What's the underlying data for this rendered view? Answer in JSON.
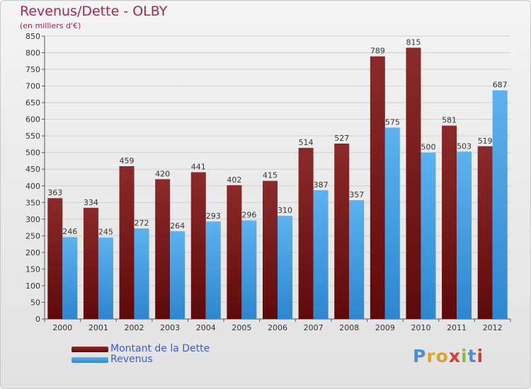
{
  "header": {
    "title": "Revenus/Dette - OLBY",
    "subtitle": "(en milliers d'€)"
  },
  "legend": {
    "dette_label": "Montant de la Dette",
    "revenus_label": "Revenus"
  },
  "logo": {
    "text": "Proxiti",
    "letters": [
      "P",
      "r",
      "o",
      "x",
      "i",
      "t",
      "i"
    ],
    "letter_colors": [
      "#4a8fd6",
      "#e3a22a",
      "#e3a22a",
      "#d93c2b",
      "#8abf2f",
      "#4a8fd6",
      "#d93c2b"
    ]
  },
  "colors": {
    "dette": "#7a1818",
    "revenus": "#4aa3e6"
  },
  "chart_data": {
    "type": "bar",
    "categories": [
      "2000",
      "2001",
      "2002",
      "2003",
      "2004",
      "2005",
      "2006",
      "2007",
      "2008",
      "2009",
      "2010",
      "2011",
      "2012"
    ],
    "series": [
      {
        "name": "Montant de la Dette",
        "values": [
          363,
          334,
          459,
          420,
          441,
          402,
          415,
          514,
          527,
          789,
          815,
          581,
          519
        ]
      },
      {
        "name": "Revenus",
        "values": [
          246,
          245,
          272,
          264,
          293,
          296,
          310,
          387,
          357,
          575,
          500,
          503,
          687
        ]
      }
    ],
    "title": "Revenus/Dette - OLBY",
    "ylabel": "(en milliers d'€)",
    "ylim": [
      0,
      850
    ],
    "yticks": [
      0,
      50,
      100,
      150,
      200,
      250,
      300,
      350,
      400,
      450,
      500,
      550,
      600,
      650,
      700,
      750,
      800,
      850
    ],
    "grid": true,
    "legend_position": "bottom-left"
  }
}
